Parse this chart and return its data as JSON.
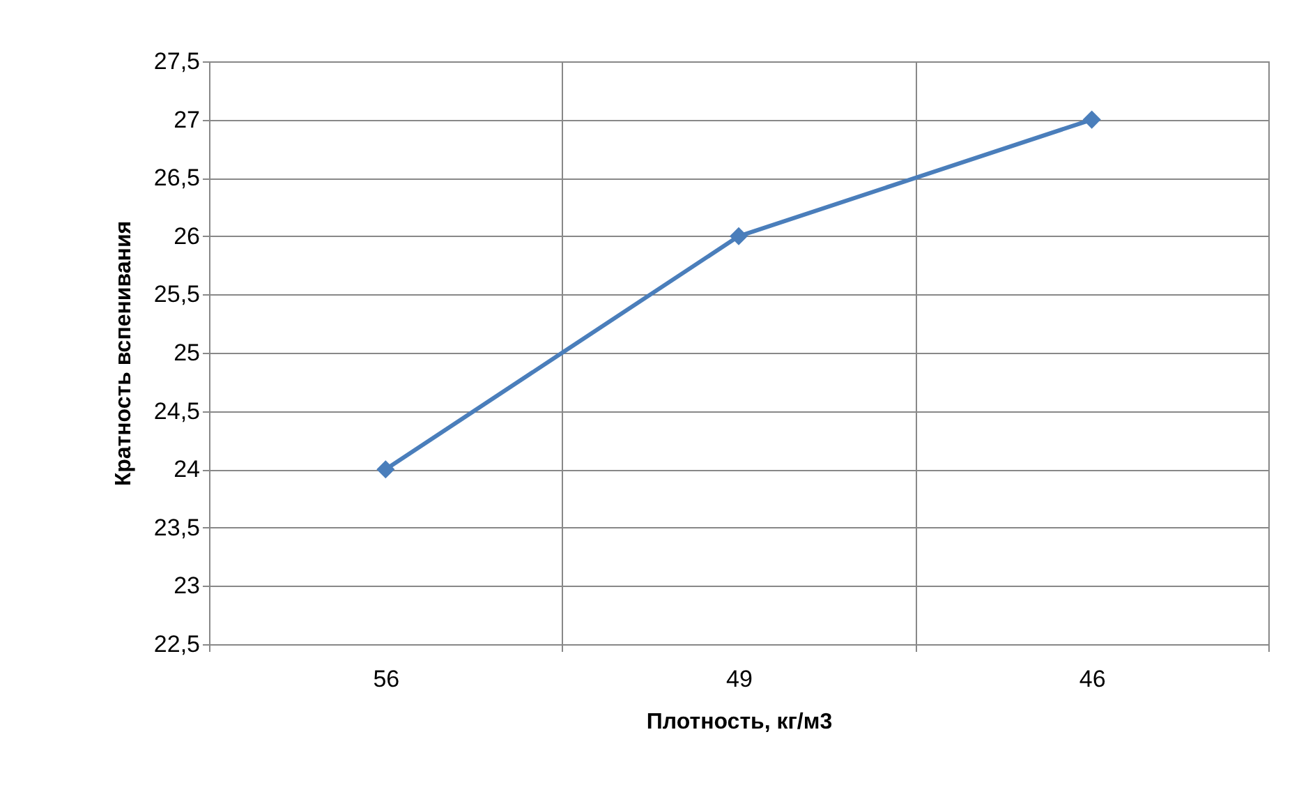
{
  "chart_data": {
    "type": "line",
    "xlabel": "Плотность, кг/м3",
    "ylabel": "Кратность вспенивания",
    "categories": [
      "56",
      "49",
      "46"
    ],
    "series": [
      {
        "color": "#4a7ebb",
        "values": [
          24,
          26,
          27
        ]
      }
    ],
    "ylim": [
      22.5,
      27.5
    ],
    "yticks": [
      {
        "value": 22.5,
        "label": "22,5"
      },
      23,
      {
        "value": 23.5,
        "label": "23,5"
      },
      24,
      {
        "value": 24.5,
        "label": "24,5"
      },
      25,
      {
        "value": 25.5,
        "label": "25,5"
      },
      26,
      {
        "value": 26.5,
        "label": "26,5"
      },
      27,
      {
        "value": 27.5,
        "label": "27,5"
      }
    ],
    "grid": true,
    "marker": "diamond"
  }
}
